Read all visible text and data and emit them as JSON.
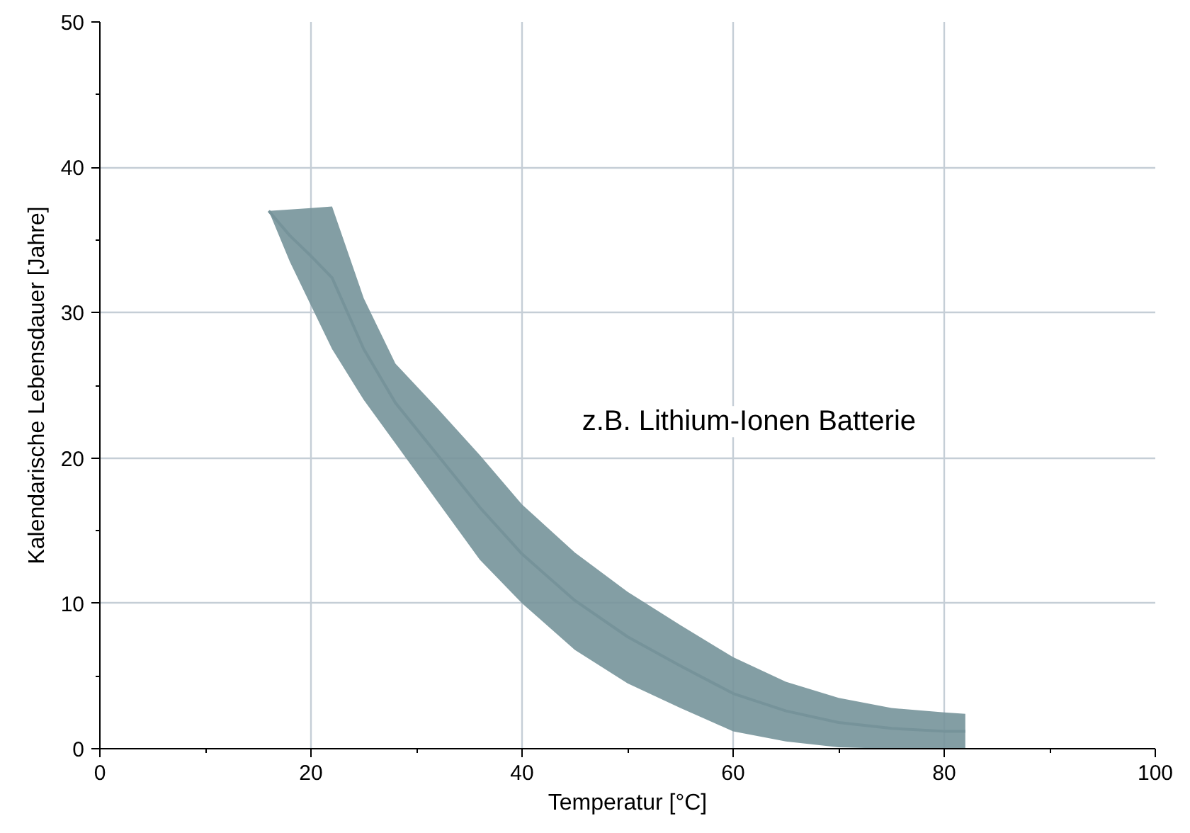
{
  "chart_data": {
    "type": "line",
    "xlabel": "Temperatur [°C]",
    "ylabel": "Kalendarische Lebensdauer [Jahre]",
    "x": [
      16,
      18,
      20,
      22,
      25,
      28,
      32,
      36,
      40,
      45,
      50,
      55,
      60,
      65,
      70,
      75,
      80,
      82
    ],
    "series": [
      {
        "name": "z.B. Lithium-Ionen Batterie",
        "color": "#76939a",
        "values": [
          37,
          35.3,
          33.9,
          32.4,
          27.5,
          23.8,
          20.2,
          16.6,
          13.4,
          10.2,
          7.7,
          5.7,
          3.8,
          2.6,
          1.8,
          1.4,
          1.2,
          1.2
        ],
        "lower": [
          37,
          33.5,
          30.5,
          27.5,
          24,
          21,
          17,
          13,
          10,
          6.8,
          4.5,
          2.8,
          1.2,
          0.5,
          0.1,
          0,
          0,
          0
        ],
        "upper": [
          37,
          37.1,
          37.2,
          37.3,
          31,
          26.5,
          23.4,
          20.2,
          16.8,
          13.5,
          10.8,
          8.5,
          6.3,
          4.6,
          3.5,
          2.8,
          2.5,
          2.4
        ]
      }
    ],
    "xlim": [
      0,
      100
    ],
    "ylim": [
      0,
      50
    ],
    "xticks": [
      0,
      {
        "value": 10,
        "label": null
      },
      20,
      {
        "value": 30,
        "label": null
      },
      40,
      {
        "value": 50,
        "label": null
      },
      60,
      {
        "value": 70,
        "label": null
      },
      80,
      {
        "value": 90,
        "label": null
      },
      100
    ],
    "yticks": [
      0,
      {
        "value": 5,
        "label": null
      },
      10,
      {
        "value": 15,
        "label": null
      },
      20,
      {
        "value": 25,
        "label": null
      },
      30,
      {
        "value": 35,
        "label": null
      },
      40,
      {
        "value": 45,
        "label": null
      },
      50
    ],
    "grid": true
  }
}
